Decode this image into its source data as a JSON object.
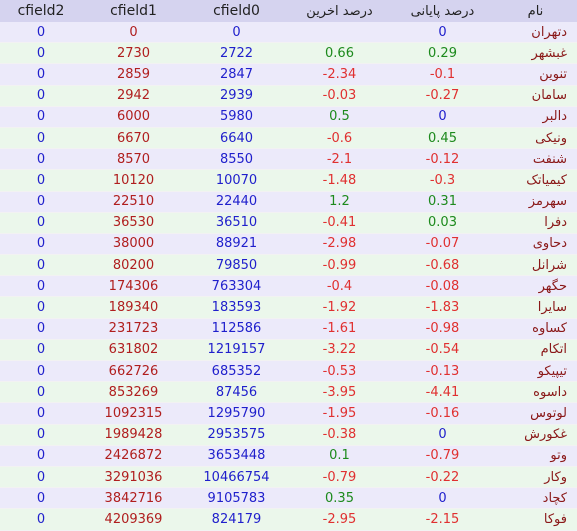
{
  "colors": {
    "header_bg": "#d5d3ef",
    "row_odd_bg": "#eceafa",
    "row_even_bg": "#ebf7eb",
    "positive": "#1d8a1d",
    "negative": "#e03030",
    "zero": "#1f1fcc",
    "number": "#b01e1e"
  },
  "headers": {
    "cfield2": "cfield2",
    "cfield1": "cfield1",
    "cfield0": "cfield0",
    "last_pct": "درصد اخرین",
    "final_pct": "درصد پایانی",
    "name": "نام"
  },
  "rows": [
    {
      "cfield2": "0",
      "cfield1": "0",
      "cfield0": "0",
      "last_pct": "",
      "final_pct": "0",
      "name": "دتهران"
    },
    {
      "cfield2": "0",
      "cfield1": "2730",
      "cfield0": "2722",
      "last_pct": "0.66",
      "final_pct": "0.29",
      "name": "غبشهر"
    },
    {
      "cfield2": "0",
      "cfield1": "2859",
      "cfield0": "2847",
      "last_pct": "-2.34",
      "final_pct": "-0.1",
      "name": "تنوین"
    },
    {
      "cfield2": "0",
      "cfield1": "2942",
      "cfield0": "2939",
      "last_pct": "-0.03",
      "final_pct": "-0.27",
      "name": "سامان"
    },
    {
      "cfield2": "0",
      "cfield1": "6000",
      "cfield0": "5980",
      "last_pct": "0.5",
      "final_pct": "0",
      "name": "دالبر"
    },
    {
      "cfield2": "0",
      "cfield1": "6670",
      "cfield0": "6640",
      "last_pct": "-0.6",
      "final_pct": "0.45",
      "name": "ونیکی"
    },
    {
      "cfield2": "0",
      "cfield1": "8570",
      "cfield0": "8550",
      "last_pct": "-2.1",
      "final_pct": "-0.12",
      "name": "شنفت"
    },
    {
      "cfield2": "0",
      "cfield1": "10120",
      "cfield0": "10070",
      "last_pct": "-1.48",
      "final_pct": "-0.3",
      "name": "کیمیاتک"
    },
    {
      "cfield2": "0",
      "cfield1": "22510",
      "cfield0": "22440",
      "last_pct": "1.2",
      "final_pct": "0.31",
      "name": "سهرمز"
    },
    {
      "cfield2": "0",
      "cfield1": "36530",
      "cfield0": "36510",
      "last_pct": "-0.41",
      "final_pct": "0.03",
      "name": "دفرا"
    },
    {
      "cfield2": "0",
      "cfield1": "38000",
      "cfield0": "88921",
      "last_pct": "-2.98",
      "final_pct": "-0.07",
      "name": "دحاوی"
    },
    {
      "cfield2": "0",
      "cfield1": "80200",
      "cfield0": "79850",
      "last_pct": "-0.99",
      "final_pct": "-0.68",
      "name": "شرانل"
    },
    {
      "cfield2": "0",
      "cfield1": "174306",
      "cfield0": "763304",
      "last_pct": "-0.4",
      "final_pct": "-0.08",
      "name": "حگهر"
    },
    {
      "cfield2": "0",
      "cfield1": "189340",
      "cfield0": "183593",
      "last_pct": "-1.92",
      "final_pct": "-1.83",
      "name": "سایرا"
    },
    {
      "cfield2": "0",
      "cfield1": "231723",
      "cfield0": "112586",
      "last_pct": "-1.61",
      "final_pct": "-0.98",
      "name": "کساوه"
    },
    {
      "cfield2": "0",
      "cfield1": "631802",
      "cfield0": "1219157",
      "last_pct": "-3.22",
      "final_pct": "-0.54",
      "name": "اتکام"
    },
    {
      "cfield2": "0",
      "cfield1": "662726",
      "cfield0": "685352",
      "last_pct": "-0.53",
      "final_pct": "-0.13",
      "name": "تیپیکو"
    },
    {
      "cfield2": "0",
      "cfield1": "853269",
      "cfield0": "87456",
      "last_pct": "-3.95",
      "final_pct": "-4.41",
      "name": "داسوه"
    },
    {
      "cfield2": "0",
      "cfield1": "1092315",
      "cfield0": "1295790",
      "last_pct": "-1.95",
      "final_pct": "-0.16",
      "name": "لوتوس"
    },
    {
      "cfield2": "0",
      "cfield1": "1989428",
      "cfield0": "2953575",
      "last_pct": "-0.38",
      "final_pct": "0",
      "name": "غکورش"
    },
    {
      "cfield2": "0",
      "cfield1": "2426872",
      "cfield0": "3653448",
      "last_pct": "0.1",
      "final_pct": "-0.79",
      "name": "وتو"
    },
    {
      "cfield2": "0",
      "cfield1": "3291036",
      "cfield0": "10466754",
      "last_pct": "-0.79",
      "final_pct": "-0.22",
      "name": "وکار"
    },
    {
      "cfield2": "0",
      "cfield1": "3842716",
      "cfield0": "9105783",
      "last_pct": "0.35",
      "final_pct": "0",
      "name": "کچاد"
    },
    {
      "cfield2": "0",
      "cfield1": "4209369",
      "cfield0": "824179",
      "last_pct": "-2.95",
      "final_pct": "-2.15",
      "name": "فوکا"
    }
  ]
}
